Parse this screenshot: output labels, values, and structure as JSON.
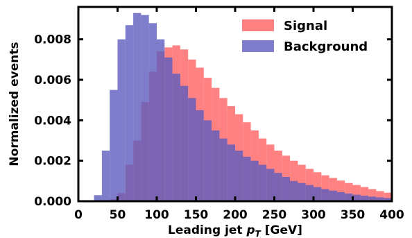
{
  "chart_data": {
    "type": "histogram",
    "xlabel_main": "Leading jet ",
    "xlabel_var": "p",
    "xlabel_sub": "T",
    "xlabel_unit": " [GeV]",
    "ylabel": "Normalized events",
    "xlim": [
      0,
      400
    ],
    "ylim": [
      0,
      0.0096
    ],
    "bin_width": 10,
    "x_ticks": [
      "0",
      "50",
      "100",
      "150",
      "200",
      "250",
      "300",
      "350",
      "400"
    ],
    "y_ticks": [
      "0.000",
      "0.002",
      "0.004",
      "0.006",
      "0.008"
    ],
    "legend_position": "top-right",
    "grid": false,
    "series": [
      {
        "name": "Signal",
        "color": "#ff6b6b",
        "opacity": 0.85,
        "bin_edges_start": 0,
        "values": [
          0,
          0,
          0,
          0,
          0.0001,
          0.0004,
          0.0018,
          0.003,
          0.0049,
          0.0064,
          0.0074,
          0.0076,
          0.0077,
          0.0075,
          0.007,
          0.0066,
          0.0061,
          0.0056,
          0.0051,
          0.0047,
          0.0043,
          0.0039,
          0.0035,
          0.0031,
          0.0028,
          0.0025,
          0.00225,
          0.002,
          0.0018,
          0.0016,
          0.00143,
          0.00128,
          0.00115,
          0.00102,
          0.0009,
          0.0008,
          0.0007,
          0.0006,
          0.0005,
          0.00042
        ]
      },
      {
        "name": "Background",
        "color": "#5c5cbe",
        "opacity": 0.8,
        "bin_edges_start": 0,
        "values": [
          0,
          0,
          0.0003,
          0.0025,
          0.0055,
          0.008,
          0.0087,
          0.0093,
          0.0092,
          0.0088,
          0.008,
          0.0071,
          0.0063,
          0.0057,
          0.0051,
          0.0045,
          0.004,
          0.0035,
          0.0031,
          0.0028,
          0.0025,
          0.0022,
          0.002,
          0.0018,
          0.0016,
          0.0014,
          0.0012,
          0.001,
          0.0009,
          0.0008,
          0.0007,
          0.0006,
          0.00052,
          0.00045,
          0.00038,
          0.00032,
          0.00027,
          0.00023,
          0.00019,
          0.00016
        ]
      }
    ]
  }
}
